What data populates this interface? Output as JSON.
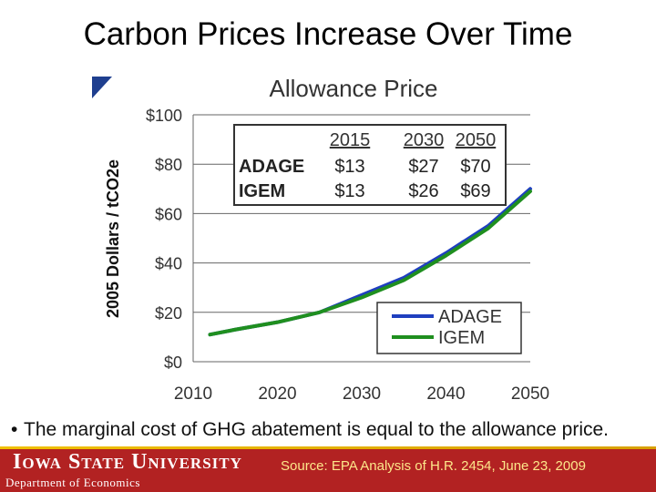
{
  "slide": {
    "title": "Carbon Prices Increase Over Time",
    "bullet": "The marginal cost of GHG abatement is equal to the allowance price."
  },
  "footer": {
    "university": "Iowa State University",
    "department": "Department of Economics",
    "source": "Source: EPA Analysis of H.R. 2454, June 23, 2009"
  },
  "colors": {
    "adage": "#1f3fbf",
    "igem": "#1f8f1f",
    "footer_bar": "#b22222",
    "corner_mark": "#1f3f8f"
  },
  "chart_data": {
    "type": "line",
    "title": "Allowance Price",
    "xlabel": "",
    "ylabel": "2005 Dollars / tCO2e",
    "xlim": [
      2010,
      2050
    ],
    "ylim": [
      0,
      100
    ],
    "x_ticks": [
      2010,
      2020,
      2030,
      2040,
      2050
    ],
    "y_ticks": [
      0,
      20,
      40,
      60,
      80,
      100
    ],
    "x_tick_labels": [
      "2010",
      "2020",
      "2030",
      "2040",
      "2050"
    ],
    "y_tick_labels": [
      "$0",
      "$20",
      "$40",
      "$60",
      "$80",
      "$100"
    ],
    "grid": "horizontal",
    "legend": {
      "position": "bottom-right",
      "entries": [
        "ADAGE",
        "IGEM"
      ]
    },
    "series": [
      {
        "name": "ADAGE",
        "x": [
          2012,
          2015,
          2020,
          2025,
          2030,
          2035,
          2040,
          2045,
          2050
        ],
        "y": [
          11,
          13,
          16,
          20,
          27,
          34,
          44,
          55,
          70
        ]
      },
      {
        "name": "IGEM",
        "x": [
          2012,
          2015,
          2020,
          2025,
          2030,
          2035,
          2040,
          2045,
          2050
        ],
        "y": [
          11,
          13,
          16,
          20,
          26,
          33,
          43,
          54,
          69
        ]
      }
    ],
    "inset_table": {
      "columns": [
        "",
        "2015",
        "2030",
        "2050"
      ],
      "rows": [
        [
          "ADAGE",
          "$13",
          "$27",
          "$70"
        ],
        [
          "IGEM",
          "$13",
          "$26",
          "$69"
        ]
      ]
    }
  }
}
